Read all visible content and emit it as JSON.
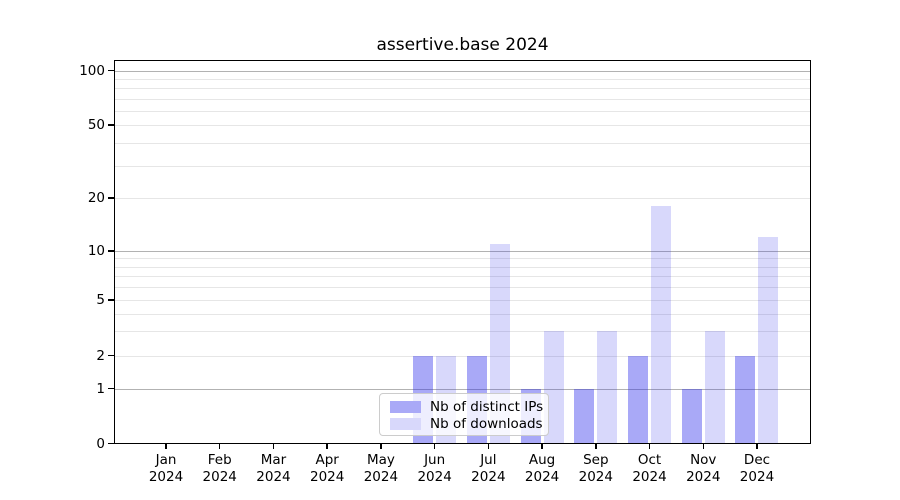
{
  "chart_data": {
    "type": "bar",
    "title": "assertive.base 2024",
    "x_tick_year": "2024",
    "categories": [
      "Jan",
      "Feb",
      "Mar",
      "Apr",
      "May",
      "Jun",
      "Jul",
      "Aug",
      "Sep",
      "Oct",
      "Nov",
      "Dec"
    ],
    "series": [
      {
        "name": "Nb of distinct IPs",
        "values": [
          0,
          0,
          0,
          0,
          0,
          2,
          2,
          1,
          1,
          2,
          1,
          2
        ],
        "color": "rgba(40,40,235,0.40)",
        "color_hex": "#a9a9f7"
      },
      {
        "name": "Nb of downloads",
        "values": [
          0,
          0,
          0,
          0,
          0,
          2,
          11,
          3,
          3,
          18,
          3,
          12
        ],
        "color": "rgba(40,40,235,0.18)",
        "color_hex": "#d8d8fb"
      }
    ],
    "xlabel": "",
    "ylabel": "",
    "yaxis": {
      "scale": "log-like with 0 baseline",
      "ticks_labeled": [
        0,
        1,
        2,
        5,
        10,
        20,
        50,
        100
      ],
      "major_grid": [
        1,
        10,
        100
      ],
      "minor_grid": [
        2,
        3,
        4,
        5,
        6,
        7,
        8,
        9,
        20,
        30,
        40,
        50,
        60,
        70,
        80,
        90
      ],
      "major_grid_color": "#b2b2b2",
      "minor_grid_color": "#e6e6e6"
    },
    "grid": "horizontal",
    "legend_position": "lower center"
  },
  "legend": {
    "items": [
      {
        "label": "Nb of distinct IPs",
        "color": "#a9a9f7"
      },
      {
        "label": "Nb of downloads",
        "color": "#d8d8fb"
      }
    ]
  }
}
